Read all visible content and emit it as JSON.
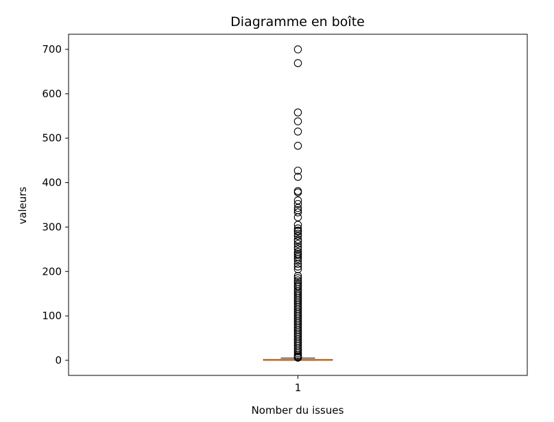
{
  "chart_data": {
    "type": "box",
    "title": "Diagramme en boîte",
    "xlabel": "Nomber du issues",
    "ylabel": "valeurs",
    "categories": [
      "1"
    ],
    "ylim": [
      -34,
      734
    ],
    "y_ticks": [
      0,
      100,
      200,
      300,
      400,
      500,
      600,
      700
    ],
    "grid": false,
    "box": {
      "q1": 0,
      "median": 1,
      "q3": 2,
      "whisker_low": 0,
      "whisker_high": 5
    },
    "outliers": [
      700,
      669,
      558,
      538,
      515,
      483,
      427,
      413,
      381,
      378,
      360,
      352,
      343,
      338,
      333,
      322,
      305,
      297,
      292,
      290,
      285,
      280,
      272,
      268,
      262,
      255,
      250,
      244,
      240,
      237,
      233,
      229,
      224,
      217,
      211,
      205,
      190,
      185,
      180,
      176,
      172,
      168,
      165,
      160,
      156,
      152,
      148,
      144,
      140,
      136,
      132,
      128,
      124,
      120,
      116,
      112,
      108,
      104,
      100,
      96,
      92,
      88,
      84,
      80,
      76,
      72,
      68,
      64,
      60,
      56,
      52,
      48,
      44,
      40,
      36,
      32,
      28,
      24,
      20,
      16,
      12,
      9,
      7,
      6
    ],
    "colors": {
      "box": "#000000",
      "median": "#ff7f0e",
      "outlier_edge": "#000000"
    }
  }
}
